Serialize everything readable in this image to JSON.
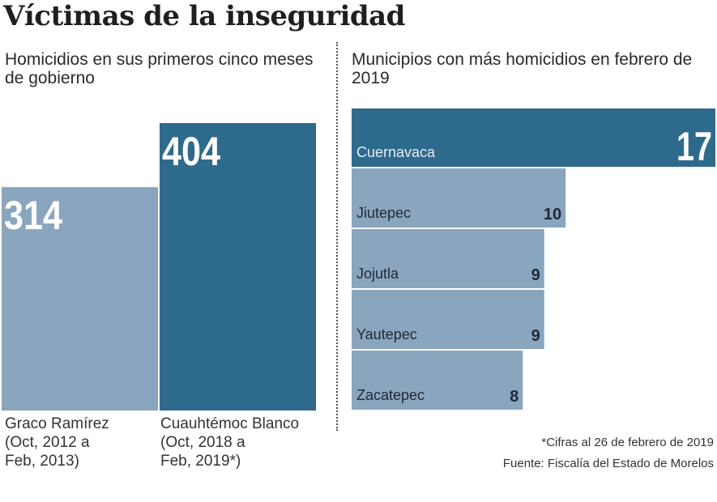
{
  "title": "Víctimas de la inseguridad",
  "chart_data": [
    {
      "type": "bar",
      "title": "Homicidios en sus primeros cinco meses de gobierno",
      "categories": [
        "Graco Ramírez",
        "Cuauhtémoc Blanco"
      ],
      "category_captions": [
        [
          "Graco Ramírez",
          "(Oct, 2012 a",
          "Feb, 2013)"
        ],
        [
          "Cuauhtémoc Blanco",
          "(Oct, 2018 a",
          "Feb, 2019*)"
        ]
      ],
      "values": [
        314,
        404
      ],
      "value_labels": [
        "314",
        "404"
      ],
      "colors": [
        "#8aa5be",
        "#2e6a8c"
      ],
      "ylim": [
        0,
        404
      ],
      "xlabel": "",
      "ylabel": "",
      "grid": false
    },
    {
      "type": "bar",
      "orientation": "horizontal",
      "title": "Municipios con más homicidios en febrero de 2019",
      "categories": [
        "Cuernavaca",
        "Jiutepec",
        "Jojutla",
        "Yautepec",
        "Zacatepec"
      ],
      "values": [
        17,
        10,
        9,
        9,
        8
      ],
      "value_labels": [
        "17",
        "10",
        "9",
        "9",
        "8"
      ],
      "colors": [
        "#2e6a8c",
        "#8aa5be",
        "#8aa5be",
        "#8aa5be",
        "#8aa5be"
      ],
      "xlim": [
        0,
        17
      ],
      "grid": false
    }
  ],
  "footnote": "*Cifras al 26 de febrero de 2019",
  "source": "Fuente: Fiscalía del Estado de Morelos"
}
